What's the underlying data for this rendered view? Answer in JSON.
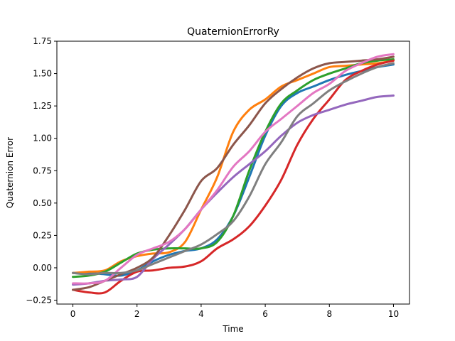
{
  "chart_data": {
    "type": "line",
    "title": "QuaternionErrorRy",
    "xlabel": "Time",
    "ylabel": "Quaternion Error",
    "xlim": [
      -0.5,
      10.5
    ],
    "ylim": [
      -0.28,
      1.75
    ],
    "x_ticks": [
      0,
      2,
      4,
      6,
      8,
      10
    ],
    "x_tick_labels": [
      "0",
      "2",
      "4",
      "6",
      "8",
      "10"
    ],
    "y_ticks": [
      -0.25,
      0.0,
      0.25,
      0.5,
      0.75,
      1.0,
      1.25,
      1.5,
      1.75
    ],
    "y_tick_labels": [
      "−0.25",
      "0.00",
      "0.25",
      "0.50",
      "0.75",
      "1.00",
      "1.25",
      "1.50",
      "1.75"
    ],
    "grid": false,
    "legend": false,
    "series": [
      {
        "color": "#1f77b4",
        "x": [
          0,
          0.5,
          1,
          1.5,
          2,
          2.5,
          3,
          3.5,
          4,
          4.5,
          5,
          5.5,
          6,
          6.5,
          7,
          7.5,
          8,
          8.5,
          9,
          9.5,
          10
        ],
        "y": [
          -0.04,
          -0.04,
          -0.05,
          -0.06,
          -0.02,
          0.05,
          0.1,
          0.13,
          0.15,
          0.22,
          0.4,
          0.7,
          1.02,
          1.25,
          1.35,
          1.4,
          1.45,
          1.49,
          1.52,
          1.55,
          1.57
        ]
      },
      {
        "color": "#ff7f0e",
        "x": [
          0,
          0.5,
          1,
          1.5,
          2,
          2.5,
          3,
          3.5,
          4,
          4.5,
          5,
          5.5,
          6,
          6.5,
          7,
          7.5,
          8,
          8.5,
          9,
          9.5,
          10
        ],
        "y": [
          -0.04,
          -0.03,
          -0.02,
          0.05,
          0.09,
          0.11,
          0.12,
          0.2,
          0.45,
          0.7,
          1.05,
          1.22,
          1.3,
          1.4,
          1.45,
          1.5,
          1.55,
          1.56,
          1.57,
          1.58,
          1.6
        ]
      },
      {
        "color": "#2ca02c",
        "x": [
          0,
          0.5,
          1,
          1.5,
          2,
          2.5,
          3,
          3.5,
          4,
          4.5,
          5,
          5.5,
          6,
          6.5,
          7,
          7.5,
          8,
          8.5,
          9,
          9.5,
          10
        ],
        "y": [
          -0.07,
          -0.06,
          -0.03,
          0.04,
          0.11,
          0.14,
          0.15,
          0.15,
          0.15,
          0.2,
          0.4,
          0.75,
          1.05,
          1.27,
          1.37,
          1.45,
          1.5,
          1.54,
          1.58,
          1.6,
          1.61
        ]
      },
      {
        "color": "#d62728",
        "x": [
          0,
          0.5,
          1,
          1.5,
          2,
          2.5,
          3,
          3.5,
          4,
          4.5,
          5,
          5.5,
          6,
          6.5,
          7,
          7.5,
          8,
          8.5,
          9,
          9.5,
          10
        ],
        "y": [
          -0.17,
          -0.19,
          -0.19,
          -0.1,
          -0.03,
          -0.02,
          0.0,
          0.01,
          0.05,
          0.15,
          0.22,
          0.32,
          0.48,
          0.68,
          0.95,
          1.15,
          1.3,
          1.45,
          1.52,
          1.57,
          1.6
        ]
      },
      {
        "color": "#9467bd",
        "x": [
          0,
          0.5,
          1,
          1.5,
          2,
          2.5,
          3,
          3.5,
          4,
          4.5,
          5,
          5.5,
          6,
          6.5,
          7,
          7.5,
          8,
          8.5,
          9,
          9.5,
          10
        ],
        "y": [
          -0.13,
          -0.12,
          -0.1,
          -0.09,
          -0.07,
          0.07,
          0.18,
          0.3,
          0.45,
          0.58,
          0.7,
          0.8,
          0.9,
          1.02,
          1.12,
          1.18,
          1.22,
          1.26,
          1.29,
          1.32,
          1.33
        ]
      },
      {
        "color": "#8c564b",
        "x": [
          0,
          0.5,
          1,
          1.5,
          2,
          2.5,
          3,
          3.5,
          4,
          4.5,
          5,
          5.5,
          6,
          6.5,
          7,
          7.5,
          8,
          8.5,
          9,
          9.5,
          10
        ],
        "y": [
          -0.17,
          -0.15,
          -0.1,
          -0.05,
          0.0,
          0.08,
          0.25,
          0.45,
          0.67,
          0.77,
          0.95,
          1.1,
          1.27,
          1.38,
          1.47,
          1.54,
          1.58,
          1.59,
          1.6,
          1.61,
          1.63
        ]
      },
      {
        "color": "#e377c2",
        "x": [
          0,
          0.5,
          1,
          1.5,
          2,
          2.5,
          3,
          3.5,
          4,
          4.5,
          5,
          5.5,
          6,
          6.5,
          7,
          7.5,
          8,
          8.5,
          9,
          9.5,
          10
        ],
        "y": [
          -0.12,
          -0.12,
          -0.1,
          0.0,
          0.1,
          0.15,
          0.2,
          0.3,
          0.45,
          0.6,
          0.78,
          0.9,
          1.05,
          1.15,
          1.25,
          1.35,
          1.42,
          1.52,
          1.58,
          1.63,
          1.65
        ]
      },
      {
        "color": "#7f7f7f",
        "x": [
          0,
          0.5,
          1,
          1.5,
          2,
          2.5,
          3,
          3.5,
          4,
          4.5,
          5,
          5.5,
          6,
          6.5,
          7,
          7.5,
          8,
          8.5,
          9,
          9.5,
          10
        ],
        "y": [
          -0.04,
          -0.05,
          -0.04,
          -0.04,
          -0.02,
          0.03,
          0.08,
          0.13,
          0.18,
          0.26,
          0.36,
          0.55,
          0.8,
          0.97,
          1.17,
          1.27,
          1.37,
          1.44,
          1.5,
          1.55,
          1.58
        ]
      }
    ]
  }
}
